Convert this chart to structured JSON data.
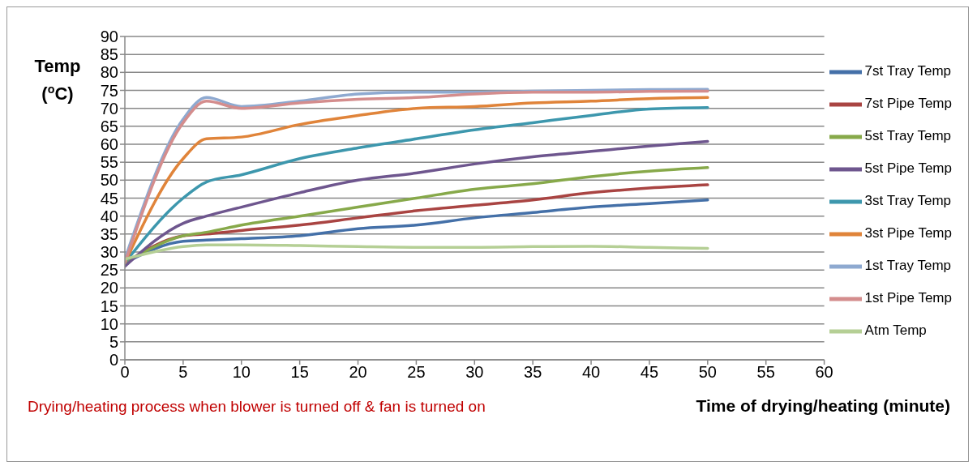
{
  "chart_data": {
    "type": "line",
    "xlabel": "Time of drying/heating (minute)",
    "ylabel": "Temp ($^{o}$C)",
    "annotations": [
      "Drying/heating process when blower is turned off & fan is turned on"
    ],
    "x": [
      0,
      5,
      7,
      10,
      15,
      20,
      25,
      30,
      35,
      40,
      45,
      50
    ],
    "xlim": [
      0,
      60
    ],
    "xticks": [
      0,
      5,
      10,
      15,
      20,
      25,
      30,
      35,
      40,
      45,
      50,
      55,
      60
    ],
    "ylim": [
      0,
      90
    ],
    "yticks": [
      0,
      5,
      10,
      15,
      20,
      25,
      30,
      35,
      40,
      45,
      50,
      55,
      60,
      65,
      70,
      75,
      80,
      85,
      90
    ],
    "grid": "y",
    "legend": "right",
    "marker": "none",
    "line_style": "solid",
    "series": [
      {
        "name": "7st Tray Temp",
        "color": "#4470a8",
        "values": [
          27,
          33,
          33.3,
          33.7,
          34.5,
          36.5,
          37.5,
          39.5,
          41,
          42.5,
          43.5,
          44.5
        ]
      },
      {
        "name": "7st Pipe Temp",
        "color": "#a94442",
        "values": [
          27,
          34.5,
          35,
          36,
          37.5,
          39.5,
          41.5,
          43,
          44.5,
          46.5,
          47.8,
          48.7
        ]
      },
      {
        "name": "5st Tray Temp",
        "color": "#87a94a",
        "values": [
          27,
          34.5,
          35.5,
          37.5,
          40,
          42.5,
          45,
          47.5,
          49,
          51,
          52.5,
          53.5
        ]
      },
      {
        "name": "5st Pipe Temp",
        "color": "#6e568e",
        "values": [
          26,
          38,
          40,
          42.5,
          46.5,
          50,
          52,
          54.5,
          56.5,
          58,
          59.5,
          60.8
        ]
      },
      {
        "name": "3st Tray Temp",
        "color": "#3d97ad",
        "values": [
          27,
          45,
          49.5,
          51.5,
          56,
          59,
          61.5,
          64,
          66,
          68,
          69.8,
          70.2
        ]
      },
      {
        "name": "3st Pipe Temp",
        "color": "#e0843a",
        "values": [
          27,
          56,
          61.5,
          62,
          65.5,
          68,
          70,
          70.5,
          71.5,
          72,
          72.7,
          73
        ]
      },
      {
        "name": "1st Tray Temp",
        "color": "#8ea9d0",
        "values": [
          28,
          67,
          73,
          70.5,
          72,
          74,
          74.5,
          74.5,
          74.8,
          75,
          75.2,
          75.3
        ]
      },
      {
        "name": "1st Pipe Temp",
        "color": "#d48d8d",
        "values": [
          27,
          66,
          72,
          70,
          71.5,
          72.5,
          73,
          74,
          74.5,
          74.5,
          74.7,
          74.8
        ]
      },
      {
        "name": "Atm Temp",
        "color": "#b5cf95",
        "values": [
          28,
          31.5,
          32,
          32,
          31.8,
          31.5,
          31.3,
          31.3,
          31.5,
          31.6,
          31.3,
          31
        ]
      }
    ]
  }
}
